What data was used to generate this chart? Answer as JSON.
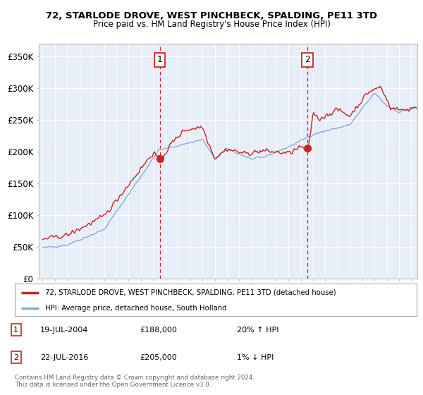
{
  "title": "72, STARLODE DROVE, WEST PINCHBECK, SPALDING, PE11 3TD",
  "subtitle": "Price paid vs. HM Land Registry's House Price Index (HPI)",
  "ylim": [
    0,
    370000
  ],
  "xlim_start": 1994.7,
  "xlim_end": 2025.5,
  "plot_bg": "#e8eef8",
  "grid_color": "#ffffff",
  "line1_color": "#cc2222",
  "line2_color": "#88aadd",
  "sale1_date": 2004.54,
  "sale1_price": 188000,
  "sale2_date": 2016.55,
  "sale2_price": 205000,
  "legend1": "72, STARLODE DROVE, WEST PINCHBECK, SPALDING, PE11 3TD (detached house)",
  "legend2": "HPI: Average price, detached house, South Holland",
  "footer": "Contains HM Land Registry data © Crown copyright and database right 2024.\nThis data is licensed under the Open Government Licence v3.0.",
  "xtick_years": [
    1995,
    1996,
    1997,
    1998,
    1999,
    2000,
    2001,
    2002,
    2003,
    2004,
    2005,
    2006,
    2007,
    2008,
    2009,
    2010,
    2011,
    2012,
    2013,
    2014,
    2015,
    2016,
    2017,
    2018,
    2019,
    2020,
    2021,
    2022,
    2023,
    2024,
    2025
  ],
  "ytick_vals": [
    0,
    50000,
    100000,
    150000,
    200000,
    250000,
    300000,
    350000
  ],
  "ytick_labels": [
    "£0",
    "£50K",
    "£100K",
    "£150K",
    "£200K",
    "£250K",
    "£300K",
    "£350K"
  ]
}
